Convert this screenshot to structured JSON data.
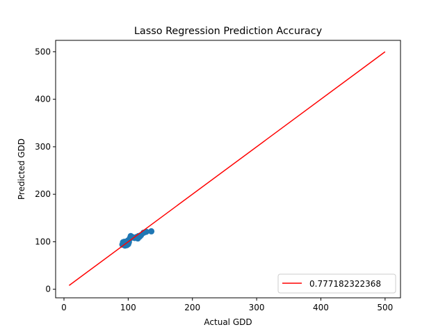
{
  "chart_data": {
    "type": "scatter",
    "title": "Lasso Regression Prediction Accuracy",
    "xlabel": "Actual GDD",
    "ylabel": "Predicted GDD",
    "xlim": [
      -13,
      524
    ],
    "ylim": [
      -18,
      524
    ],
    "xticks": [
      0,
      100,
      200,
      300,
      400,
      500
    ],
    "yticks": [
      0,
      100,
      200,
      300,
      400,
      500
    ],
    "grid": false,
    "legend_position": "lower right",
    "colors": {
      "points": "#1f77b4",
      "line": "#ff0000"
    },
    "series": [
      {
        "kind": "scatter",
        "points": [
          [
            91,
            94
          ],
          [
            92,
            99
          ],
          [
            93,
            96
          ],
          [
            94,
            100
          ],
          [
            95,
            92
          ],
          [
            96,
            97
          ],
          [
            97,
            98
          ],
          [
            98,
            93
          ],
          [
            98,
            101
          ],
          [
            99,
            96
          ],
          [
            100,
            95
          ],
          [
            100,
            103
          ],
          [
            101,
            99
          ],
          [
            102,
            105
          ],
          [
            103,
            108
          ],
          [
            104,
            112
          ],
          [
            106,
            110
          ],
          [
            108,
            109
          ],
          [
            110,
            108
          ],
          [
            113,
            110
          ],
          [
            115,
            107
          ],
          [
            116,
            112
          ],
          [
            118,
            111
          ],
          [
            120,
            114
          ],
          [
            124,
            119
          ],
          [
            128,
            121
          ],
          [
            136,
            122
          ]
        ]
      },
      {
        "kind": "line",
        "name": "0.777182322368",
        "points": [
          [
            8,
            8
          ],
          [
            500,
            500
          ]
        ]
      }
    ]
  }
}
